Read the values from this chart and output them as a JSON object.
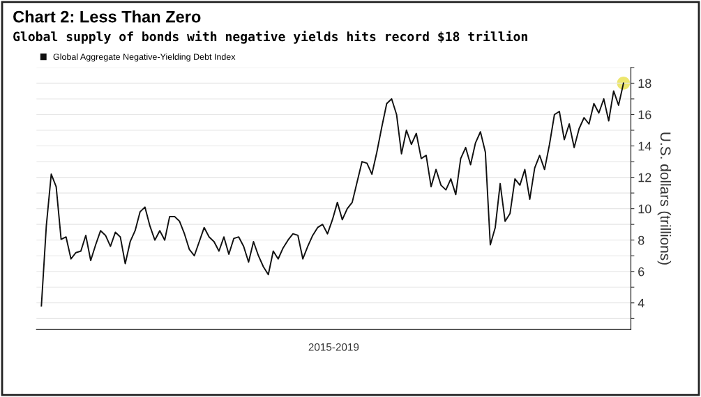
{
  "chart_data": {
    "type": "line",
    "title": "Chart 2: Less Than Zero",
    "subtitle": "Global supply of bonds with negative yields hits record $18 trillion",
    "xlabel": "2015-2019",
    "ylabel": "U.S. dollars (trillions)",
    "categories": [
      null,
      null,
      null,
      null,
      null,
      null,
      null,
      null,
      null,
      null,
      null,
      null,
      null,
      null,
      null,
      null,
      null,
      null,
      null,
      null,
      null,
      null,
      null,
      null,
      null,
      null,
      null,
      null,
      null,
      null,
      null,
      null,
      null,
      null,
      null,
      null,
      null,
      null,
      null,
      null,
      null,
      null,
      null,
      null,
      null,
      null,
      null,
      null,
      null,
      null,
      null,
      null,
      null,
      null,
      null,
      null,
      null,
      null,
      null,
      null,
      null,
      null,
      null,
      null,
      null,
      null,
      null,
      null,
      null,
      null,
      null,
      null,
      null,
      null,
      null,
      null,
      null,
      null,
      null,
      null,
      null,
      null,
      null,
      null,
      null,
      null,
      null,
      null,
      null,
      null,
      null,
      null,
      null,
      null,
      null,
      null,
      null,
      null,
      null,
      null,
      null,
      null,
      null,
      null,
      null,
      null,
      null,
      null,
      null,
      null,
      null,
      null,
      null,
      null,
      null,
      null,
      null,
      null,
      null
    ],
    "series": [
      {
        "name": "Global Aggregate Negative-Yielding Debt Index",
        "color": "#111111",
        "values": [
          3.8,
          8.9,
          12.2,
          11.4,
          8.05,
          8.2,
          6.8,
          7.2,
          7.3,
          8.3,
          6.7,
          7.7,
          8.6,
          8.3,
          7.6,
          8.5,
          8.2,
          6.5,
          7.9,
          8.6,
          9.8,
          10.1,
          8.9,
          8.0,
          8.6,
          8.0,
          9.5,
          9.5,
          9.2,
          8.4,
          7.4,
          7.0,
          7.9,
          8.8,
          8.2,
          7.9,
          7.3,
          8.2,
          7.1,
          8.1,
          8.2,
          7.6,
          6.6,
          7.9,
          7.0,
          6.3,
          5.8,
          7.3,
          6.8,
          7.5,
          8.0,
          8.4,
          8.3,
          6.8,
          7.6,
          8.3,
          8.8,
          9.0,
          8.4,
          9.3,
          10.4,
          9.3,
          10.0,
          10.4,
          11.7,
          13.0,
          12.9,
          12.2,
          13.6,
          15.2,
          16.7,
          17.0,
          16.0,
          13.5,
          15.0,
          14.1,
          14.8,
          13.2,
          13.4,
          11.4,
          12.5,
          11.5,
          11.2,
          11.9,
          10.9,
          13.2,
          13.9,
          12.8,
          14.2,
          14.9,
          13.6,
          7.7,
          8.8,
          11.6,
          9.2,
          9.7,
          11.9,
          11.5,
          12.5,
          10.6,
          12.6,
          13.4,
          12.5,
          14.1,
          16.0,
          16.2,
          14.4,
          15.4,
          13.9,
          15.1,
          15.8,
          15.4,
          16.7,
          16.1,
          17.0,
          15.6,
          17.5,
          16.6,
          18.0
        ]
      },
      {
        "type": "scatter",
        "color": "#e8e04a",
        "values": [
          null,
          null,
          null,
          null,
          null,
          null,
          null,
          null,
          null,
          null,
          null,
          null,
          null,
          null,
          null,
          null,
          null,
          null,
          null,
          null,
          null,
          null,
          null,
          null,
          null,
          null,
          null,
          null,
          null,
          null,
          null,
          null,
          null,
          null,
          null,
          null,
          null,
          null,
          null,
          null,
          null,
          null,
          null,
          null,
          null,
          null,
          null,
          null,
          null,
          null,
          null,
          null,
          null,
          null,
          null,
          null,
          null,
          null,
          null,
          null,
          null,
          null,
          null,
          null,
          null,
          null,
          null,
          null,
          null,
          null,
          null,
          null,
          null,
          null,
          null,
          null,
          null,
          null,
          null,
          null,
          null,
          null,
          null,
          null,
          null,
          null,
          null,
          null,
          null,
          null,
          null,
          null,
          null,
          null,
          null,
          null,
          null,
          null,
          null,
          null,
          null,
          null,
          null,
          null,
          null,
          null,
          null,
          null,
          null,
          null,
          null,
          null,
          null,
          null,
          null,
          null,
          null,
          null,
          18.0
        ]
      }
    ],
    "ylim": [
      2.3,
      19
    ],
    "yticks": [
      {
        "value": 3,
        "label": null
      },
      4,
      {
        "value": 5,
        "label": null
      },
      6,
      {
        "value": 7,
        "label": null
      },
      8,
      {
        "value": 9,
        "label": null
      },
      10,
      {
        "value": 11,
        "label": null
      },
      12,
      {
        "value": 13,
        "label": null
      },
      14,
      {
        "value": 15,
        "label": null
      },
      16,
      {
        "value": 17,
        "label": null
      },
      18,
      {
        "value": 19,
        "label": null
      }
    ],
    "grid": "y",
    "legend": "top left",
    "tick_labels": "y"
  }
}
